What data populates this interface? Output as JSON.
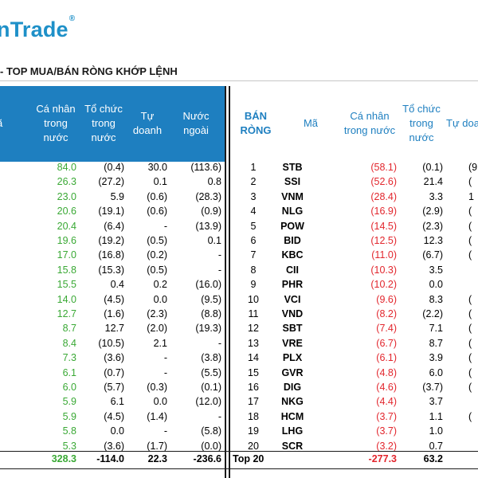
{
  "logo": {
    "text": "nTrade",
    "mark": "®"
  },
  "title": "- TOP MUA/BÁN RÒNG KHỚP LỆNH",
  "left_headers": {
    "ma": "ã",
    "ca_nhan": [
      "Cá nhân",
      "trong",
      "nước"
    ],
    "to_chuc": [
      "Tổ chức",
      "trong",
      "nước"
    ],
    "tu_doanh": [
      "Tự",
      "doanh"
    ],
    "nuoc_ngoai": [
      "Nước",
      "ngoài"
    ]
  },
  "right_headers": {
    "ban_rong": [
      "BÁN",
      "RÒNG"
    ],
    "ma": "Mã",
    "ca_nhan": [
      "Cá nhân",
      "trong nước"
    ],
    "to_chuc": [
      "Tổ chức",
      "trong",
      "nước"
    ],
    "tu_doanh": "Tự doa"
  },
  "left_rows": [
    {
      "ca_nhan": "84.0",
      "to_chuc": "(0.4)",
      "tu_doanh": "30.0",
      "nuoc_ngoai": "(113.6)"
    },
    {
      "ca_nhan": "26.3",
      "to_chuc": "(27.2)",
      "tu_doanh": "0.1",
      "nuoc_ngoai": "0.8"
    },
    {
      "ca_nhan": "23.0",
      "to_chuc": "5.9",
      "tu_doanh": "(0.6)",
      "nuoc_ngoai": "(28.3)"
    },
    {
      "ca_nhan": "20.6",
      "to_chuc": "(19.1)",
      "tu_doanh": "(0.6)",
      "nuoc_ngoai": "(0.9)"
    },
    {
      "ca_nhan": "20.4",
      "to_chuc": "(6.4)",
      "tu_doanh": "-",
      "nuoc_ngoai": "(13.9)"
    },
    {
      "ca_nhan": "19.6",
      "to_chuc": "(19.2)",
      "tu_doanh": "(0.5)",
      "nuoc_ngoai": "0.1"
    },
    {
      "ca_nhan": "17.0",
      "to_chuc": "(16.8)",
      "tu_doanh": "(0.2)",
      "nuoc_ngoai": "-"
    },
    {
      "ca_nhan": "15.8",
      "to_chuc": "(15.3)",
      "tu_doanh": "(0.5)",
      "nuoc_ngoai": "-"
    },
    {
      "ca_nhan": "15.5",
      "to_chuc": "0.4",
      "tu_doanh": "0.2",
      "nuoc_ngoai": "(16.0)"
    },
    {
      "ca_nhan": "14.0",
      "to_chuc": "(4.5)",
      "tu_doanh": "0.0",
      "nuoc_ngoai": "(9.5)"
    },
    {
      "ca_nhan": "12.7",
      "to_chuc": "(1.6)",
      "tu_doanh": "(2.3)",
      "nuoc_ngoai": "(8.8)"
    },
    {
      "ca_nhan": "8.7",
      "to_chuc": "12.7",
      "tu_doanh": "(2.0)",
      "nuoc_ngoai": "(19.3)"
    },
    {
      "ca_nhan": "8.4",
      "to_chuc": "(10.5)",
      "tu_doanh": "2.1",
      "nuoc_ngoai": "-"
    },
    {
      "ca_nhan": "7.3",
      "to_chuc": "(3.6)",
      "tu_doanh": "-",
      "nuoc_ngoai": "(3.8)"
    },
    {
      "ca_nhan": "6.1",
      "to_chuc": "(0.7)",
      "tu_doanh": "-",
      "nuoc_ngoai": "(5.5)"
    },
    {
      "ca_nhan": "6.0",
      "to_chuc": "(5.7)",
      "tu_doanh": "(0.3)",
      "nuoc_ngoai": "(0.1)"
    },
    {
      "ca_nhan": "5.9",
      "to_chuc": "6.1",
      "tu_doanh": "0.0",
      "nuoc_ngoai": "(12.0)"
    },
    {
      "ca_nhan": "5.9",
      "to_chuc": "(4.5)",
      "tu_doanh": "(1.4)",
      "nuoc_ngoai": "-"
    },
    {
      "ca_nhan": "5.8",
      "to_chuc": "0.0",
      "tu_doanh": "-",
      "nuoc_ngoai": "(5.8)"
    },
    {
      "ca_nhan": "5.3",
      "to_chuc": "(3.6)",
      "tu_doanh": "(1.7)",
      "nuoc_ngoai": "(0.0)"
    }
  ],
  "left_total": {
    "ca_nhan": "328.3",
    "to_chuc": "-114.0",
    "tu_doanh": "22.3",
    "nuoc_ngoai": "-236.6"
  },
  "right_rows": [
    {
      "rank": "1",
      "ma": "STB",
      "ca_nhan": "(58.1)",
      "to_chuc": "(0.1)",
      "tu_doanh": "(9"
    },
    {
      "rank": "2",
      "ma": "SSI",
      "ca_nhan": "(52.6)",
      "to_chuc": "21.4",
      "tu_doanh": "("
    },
    {
      "rank": "3",
      "ma": "VNM",
      "ca_nhan": "(28.4)",
      "to_chuc": "3.3",
      "tu_doanh": "1"
    },
    {
      "rank": "4",
      "ma": "NLG",
      "ca_nhan": "(16.9)",
      "to_chuc": "(2.9)",
      "tu_doanh": "("
    },
    {
      "rank": "5",
      "ma": "POW",
      "ca_nhan": "(14.5)",
      "to_chuc": "(2.3)",
      "tu_doanh": "("
    },
    {
      "rank": "6",
      "ma": "BID",
      "ca_nhan": "(12.5)",
      "to_chuc": "12.3",
      "tu_doanh": "("
    },
    {
      "rank": "7",
      "ma": "KBC",
      "ca_nhan": "(11.0)",
      "to_chuc": "(6.7)",
      "tu_doanh": "("
    },
    {
      "rank": "8",
      "ma": "CII",
      "ca_nhan": "(10.3)",
      "to_chuc": "3.5",
      "tu_doanh": ""
    },
    {
      "rank": "9",
      "ma": "PHR",
      "ca_nhan": "(10.2)",
      "to_chuc": "0.0",
      "tu_doanh": ""
    },
    {
      "rank": "10",
      "ma": "VCI",
      "ca_nhan": "(9.6)",
      "to_chuc": "8.3",
      "tu_doanh": "("
    },
    {
      "rank": "11",
      "ma": "VND",
      "ca_nhan": "(8.2)",
      "to_chuc": "(2.2)",
      "tu_doanh": "("
    },
    {
      "rank": "12",
      "ma": "SBT",
      "ca_nhan": "(7.4)",
      "to_chuc": "7.1",
      "tu_doanh": "("
    },
    {
      "rank": "13",
      "ma": "VRE",
      "ca_nhan": "(6.7)",
      "to_chuc": "8.7",
      "tu_doanh": "("
    },
    {
      "rank": "14",
      "ma": "PLX",
      "ca_nhan": "(6.1)",
      "to_chuc": "3.9",
      "tu_doanh": "("
    },
    {
      "rank": "15",
      "ma": "GVR",
      "ca_nhan": "(4.8)",
      "to_chuc": "6.0",
      "tu_doanh": "("
    },
    {
      "rank": "16",
      "ma": "DIG",
      "ca_nhan": "(4.6)",
      "to_chuc": "(3.7)",
      "tu_doanh": "("
    },
    {
      "rank": "17",
      "ma": "NKG",
      "ca_nhan": "(4.4)",
      "to_chuc": "3.7",
      "tu_doanh": ""
    },
    {
      "rank": "18",
      "ma": "HCM",
      "ca_nhan": "(3.7)",
      "to_chuc": "1.1",
      "tu_doanh": "("
    },
    {
      "rank": "19",
      "ma": "LHG",
      "ca_nhan": "(3.7)",
      "to_chuc": "1.0",
      "tu_doanh": ""
    },
    {
      "rank": "20",
      "ma": "SCR",
      "ca_nhan": "(3.2)",
      "to_chuc": "0.7",
      "tu_doanh": ""
    }
  ],
  "right_total": {
    "label": "Top 20",
    "ca_nhan": "-277.3",
    "to_chuc": "63.2"
  },
  "colors": {
    "header_blue": "#1e7fc0",
    "positive_green": "#3aa935",
    "negative_red": "#e2262d"
  }
}
